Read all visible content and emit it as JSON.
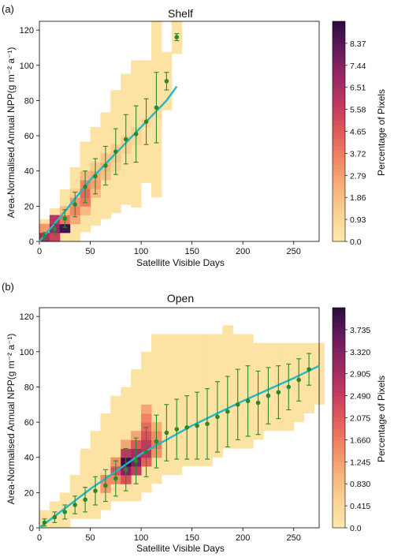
{
  "chart_data": [
    {
      "type": "heatmap",
      "panel_label": "(a)",
      "title": "Shelf",
      "xlabel": "Satellite Visible Days",
      "ylabel": "Area-Normalised Annual NPP(g m⁻² a⁻¹)",
      "xlim": [
        0,
        275
      ],
      "ylim": [
        0,
        125
      ],
      "xticks": [
        0,
        50,
        100,
        150,
        200,
        250
      ],
      "yticks": [
        0,
        20,
        40,
        60,
        80,
        100,
        120
      ],
      "colorbar": {
        "label": "Percentage of Pixels",
        "ticks": [
          "0.0",
          "0.93",
          "1.86",
          "2.79",
          "3.72",
          "4.65",
          "5.58",
          "6.51",
          "7.44",
          "8.37"
        ],
        "max": 9.3
      },
      "bin_size": {
        "x": 10,
        "y": 5
      },
      "heatmap_density": [
        {
          "x": 0,
          "y": 0,
          "v": 6.5
        },
        {
          "x": 0,
          "y": 5,
          "v": 3.0
        },
        {
          "x": 10,
          "y": 0,
          "v": 5.5
        },
        {
          "x": 10,
          "y": 5,
          "v": 7.0
        },
        {
          "x": 10,
          "y": 10,
          "v": 6.0
        },
        {
          "x": 20,
          "y": 5,
          "v": 8.8
        },
        {
          "x": 20,
          "y": 10,
          "v": 4.0
        },
        {
          "x": 20,
          "y": 15,
          "v": 2.0
        },
        {
          "x": 30,
          "y": 10,
          "v": 2.5
        },
        {
          "x": 30,
          "y": 15,
          "v": 3.5
        },
        {
          "x": 30,
          "y": 20,
          "v": 3.0
        },
        {
          "x": 30,
          "y": 25,
          "v": 1.2
        },
        {
          "x": 40,
          "y": 15,
          "v": 2.0
        },
        {
          "x": 40,
          "y": 20,
          "v": 3.8
        },
        {
          "x": 40,
          "y": 25,
          "v": 4.3
        },
        {
          "x": 40,
          "y": 30,
          "v": 3.5
        },
        {
          "x": 40,
          "y": 35,
          "v": 2.0
        },
        {
          "x": 50,
          "y": 25,
          "v": 2.0
        },
        {
          "x": 50,
          "y": 30,
          "v": 2.8
        },
        {
          "x": 50,
          "y": 35,
          "v": 2.5
        },
        {
          "x": 50,
          "y": 40,
          "v": 1.5
        },
        {
          "x": 60,
          "y": 35,
          "v": 1.8
        },
        {
          "x": 60,
          "y": 40,
          "v": 2.2
        },
        {
          "x": 60,
          "y": 45,
          "v": 1.6
        },
        {
          "x": 70,
          "y": 40,
          "v": 1.2
        },
        {
          "x": 70,
          "y": 45,
          "v": 1.6
        },
        {
          "x": 70,
          "y": 50,
          "v": 1.4
        },
        {
          "x": 80,
          "y": 50,
          "v": 1.2
        },
        {
          "x": 80,
          "y": 55,
          "v": 1.3
        },
        {
          "x": 90,
          "y": 55,
          "v": 1.0
        },
        {
          "x": 90,
          "y": 60,
          "v": 1.1
        },
        {
          "x": 100,
          "y": 65,
          "v": 0.9
        },
        {
          "x": 110,
          "y": 70,
          "v": 0.8
        }
      ],
      "fit_line": {
        "x": [
          0,
          25,
          50,
          75,
          100,
          125,
          135
        ],
        "y": [
          0,
          17,
          35,
          50,
          65,
          80,
          88
        ]
      },
      "mean_points": [
        {
          "x": 5,
          "y": 3,
          "err": 2
        },
        {
          "x": 15,
          "y": 7,
          "err": 3
        },
        {
          "x": 25,
          "y": 13,
          "err": 5
        },
        {
          "x": 35,
          "y": 21,
          "err": 7
        },
        {
          "x": 45,
          "y": 31,
          "err": 9
        },
        {
          "x": 55,
          "y": 37,
          "err": 10
        },
        {
          "x": 65,
          "y": 43,
          "err": 11
        },
        {
          "x": 75,
          "y": 51,
          "err": 13
        },
        {
          "x": 85,
          "y": 58,
          "err": 14
        },
        {
          "x": 95,
          "y": 61,
          "err": 16
        },
        {
          "x": 105,
          "y": 68,
          "err": 13
        },
        {
          "x": 115,
          "y": 76,
          "err": 20
        },
        {
          "x": 125,
          "y": 91,
          "err": 5
        },
        {
          "x": 135,
          "y": 116,
          "err": 2
        }
      ]
    },
    {
      "type": "heatmap",
      "panel_label": "(b)",
      "title": "Open",
      "xlabel": "Satellite Visible Days",
      "ylabel": "Area-Normalised Annual NPP(g m⁻² a⁻¹)",
      "xlim": [
        0,
        275
      ],
      "ylim": [
        0,
        125
      ],
      "xticks": [
        0,
        50,
        100,
        150,
        200,
        250
      ],
      "yticks": [
        0,
        20,
        40,
        60,
        80,
        100,
        120
      ],
      "colorbar": {
        "label": "Percentage of Pixels",
        "ticks": [
          "0.0",
          "0.415",
          "0.830",
          "1.245",
          "1.660",
          "2.075",
          "2.490",
          "2.905",
          "3.320",
          "3.735"
        ],
        "max": 4.15
      },
      "bin_size": {
        "x": 10,
        "y": 5
      },
      "heatmap_density": [
        {
          "x": 70,
          "y": 25,
          "v": 1.5
        },
        {
          "x": 70,
          "y": 30,
          "v": 2.2
        },
        {
          "x": 70,
          "y": 35,
          "v": 1.4
        },
        {
          "x": 80,
          "y": 25,
          "v": 2.2
        },
        {
          "x": 80,
          "y": 30,
          "v": 3.3
        },
        {
          "x": 80,
          "y": 35,
          "v": 4.0
        },
        {
          "x": 80,
          "y": 40,
          "v": 2.6
        },
        {
          "x": 80,
          "y": 45,
          "v": 1.2
        },
        {
          "x": 90,
          "y": 30,
          "v": 2.5
        },
        {
          "x": 90,
          "y": 35,
          "v": 3.4
        },
        {
          "x": 90,
          "y": 40,
          "v": 3.0
        },
        {
          "x": 90,
          "y": 45,
          "v": 2.1
        },
        {
          "x": 90,
          "y": 50,
          "v": 1.2
        },
        {
          "x": 100,
          "y": 35,
          "v": 2.0
        },
        {
          "x": 100,
          "y": 40,
          "v": 2.7
        },
        {
          "x": 100,
          "y": 45,
          "v": 2.6
        },
        {
          "x": 100,
          "y": 50,
          "v": 2.2
        },
        {
          "x": 100,
          "y": 55,
          "v": 1.9
        },
        {
          "x": 100,
          "y": 60,
          "v": 1.6
        },
        {
          "x": 100,
          "y": 65,
          "v": 1.2
        },
        {
          "x": 110,
          "y": 40,
          "v": 1.4
        },
        {
          "x": 110,
          "y": 45,
          "v": 1.7
        },
        {
          "x": 110,
          "y": 50,
          "v": 1.5
        },
        {
          "x": 110,
          "y": 55,
          "v": 1.1
        },
        {
          "x": 60,
          "y": 20,
          "v": 1.3
        },
        {
          "x": 60,
          "y": 25,
          "v": 1.5
        }
      ],
      "fit_line": {
        "x": [
          0,
          50,
          100,
          150,
          200,
          250,
          275
        ],
        "y": [
          0,
          22,
          42,
          58,
          72,
          85,
          92
        ]
      },
      "mean_points": [
        {
          "x": 5,
          "y": 3,
          "err": 2
        },
        {
          "x": 15,
          "y": 6,
          "err": 3
        },
        {
          "x": 25,
          "y": 9,
          "err": 4
        },
        {
          "x": 35,
          "y": 13,
          "err": 5
        },
        {
          "x": 45,
          "y": 16,
          "err": 7
        },
        {
          "x": 55,
          "y": 21,
          "err": 8
        },
        {
          "x": 65,
          "y": 24,
          "err": 9
        },
        {
          "x": 75,
          "y": 28,
          "err": 10
        },
        {
          "x": 85,
          "y": 33,
          "err": 12
        },
        {
          "x": 95,
          "y": 38,
          "err": 13
        },
        {
          "x": 105,
          "y": 43,
          "err": 14
        },
        {
          "x": 115,
          "y": 49,
          "err": 15
        },
        {
          "x": 125,
          "y": 54,
          "err": 16
        },
        {
          "x": 135,
          "y": 56,
          "err": 17
        },
        {
          "x": 145,
          "y": 57,
          "err": 18
        },
        {
          "x": 155,
          "y": 58,
          "err": 19
        },
        {
          "x": 165,
          "y": 59,
          "err": 20
        },
        {
          "x": 175,
          "y": 63,
          "err": 20
        },
        {
          "x": 185,
          "y": 66,
          "err": 20
        },
        {
          "x": 195,
          "y": 70,
          "err": 20
        },
        {
          "x": 205,
          "y": 72,
          "err": 20
        },
        {
          "x": 215,
          "y": 71,
          "err": 18
        },
        {
          "x": 225,
          "y": 75,
          "err": 16
        },
        {
          "x": 235,
          "y": 77,
          "err": 15
        },
        {
          "x": 245,
          "y": 80,
          "err": 13
        },
        {
          "x": 255,
          "y": 84,
          "err": 12
        },
        {
          "x": 265,
          "y": 90,
          "err": 9
        }
      ],
      "envelope": [
        [
          0,
          0,
          10
        ],
        [
          10,
          0,
          15
        ],
        [
          20,
          0,
          20
        ],
        [
          30,
          5,
          30
        ],
        [
          40,
          5,
          45
        ],
        [
          50,
          5,
          55
        ],
        [
          60,
          10,
          65
        ],
        [
          70,
          15,
          75
        ],
        [
          80,
          15,
          80
        ],
        [
          90,
          15,
          90
        ],
        [
          100,
          20,
          100
        ],
        [
          110,
          25,
          110
        ],
        [
          120,
          30,
          110
        ],
        [
          130,
          30,
          110
        ],
        [
          140,
          35,
          110
        ],
        [
          150,
          35,
          110
        ],
        [
          160,
          35,
          110
        ],
        [
          170,
          40,
          110
        ],
        [
          180,
          45,
          115
        ],
        [
          190,
          45,
          110
        ],
        [
          200,
          45,
          110
        ],
        [
          210,
          50,
          105
        ],
        [
          220,
          55,
          105
        ],
        [
          230,
          55,
          105
        ],
        [
          240,
          55,
          105
        ],
        [
          250,
          60,
          105
        ],
        [
          260,
          65,
          105
        ],
        [
          270,
          70,
          105
        ]
      ]
    }
  ]
}
